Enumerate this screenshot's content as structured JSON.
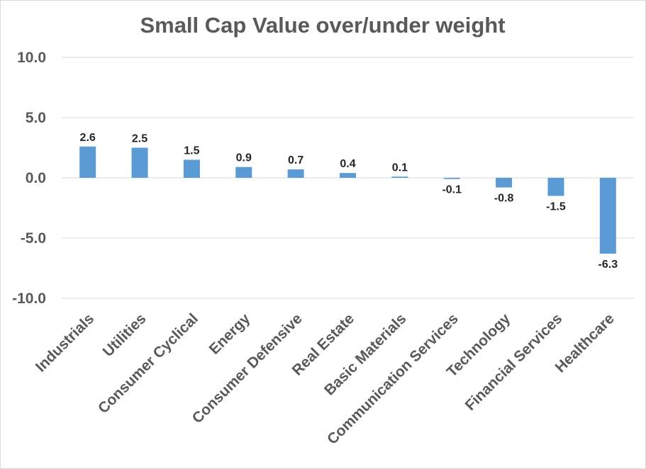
{
  "chart_data": {
    "type": "bar",
    "title": "Small Cap Value over/under weight",
    "xlabel": "",
    "ylabel": "",
    "categories": [
      "Industrials",
      "Utilities",
      "Consumer Cyclical",
      "Energy",
      "Consumer Defensive",
      "Real Estate",
      "Basic Materials",
      "Communication Services",
      "Technology",
      "Financial Services",
      "Healthcare"
    ],
    "values": [
      2.6,
      2.5,
      1.5,
      0.9,
      0.7,
      0.4,
      0.1,
      -0.1,
      -0.8,
      -1.5,
      -6.3
    ],
    "data_labels": [
      "2.6",
      "2.5",
      "1.5",
      "0.9",
      "0.7",
      "0.4",
      "0.1",
      "-0.1",
      "-0.8",
      "-1.5",
      "-6.3"
    ],
    "ylim": [
      -10,
      10
    ],
    "yticks": [
      10,
      5,
      0,
      -5,
      -10
    ],
    "ytick_labels": [
      "10.0",
      "5.0",
      "0.0",
      "-5.0",
      "-10.0"
    ],
    "grid": true,
    "legend": "none",
    "colors": {
      "bar": "#5b9bd5",
      "grid": "#d9d9d9",
      "text": "#595959",
      "label": "#262626"
    }
  }
}
